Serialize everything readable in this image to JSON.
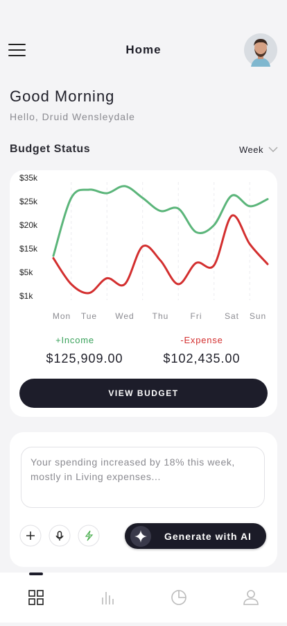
{
  "header": {
    "title": "Home"
  },
  "greeting": {
    "title": "Good Morning",
    "subtitle": "Hello, Druid Wensleydale"
  },
  "budget": {
    "title": "Budget Status",
    "period": "Week",
    "button": "VIEW BUDGET",
    "income_label": "+Income",
    "income": "$125,909.00",
    "expense_label": "-Expense",
    "expense": "$102,435.00"
  },
  "chart_data": {
    "type": "line",
    "categories": [
      "Mon",
      null,
      "Tue",
      null,
      "Wed",
      null,
      "Thu",
      null,
      "Fri",
      null,
      "Sat",
      null,
      "Sun"
    ],
    "series": [
      {
        "name": "Income",
        "color": "#5bb57a",
        "values": [
          12000,
          26500,
          30000,
          28500,
          31500,
          26500,
          23000,
          23500,
          18500,
          20000,
          27500,
          24000,
          26000
        ]
      },
      {
        "name": "Expense",
        "color": "#d32f2f",
        "values": [
          11000,
          3000,
          1500,
          4000,
          3000,
          15500,
          10000,
          3000,
          9000,
          8000,
          22000,
          16000,
          8500
        ]
      }
    ],
    "yticks": [
      {
        "value": 35000,
        "label": "$35k"
      },
      {
        "value": 25000,
        "label": "$25k"
      },
      {
        "value": 20000,
        "label": "$20k"
      },
      {
        "value": 15000,
        "label": "$15k"
      },
      {
        "value": 5000,
        "label": "$5k"
      },
      {
        "value": 1000,
        "label": "$1k"
      }
    ]
  },
  "insight": {
    "text": "Your spending increased by 18% this week, mostly in Living expenses...",
    "button": "Generate with AI"
  }
}
